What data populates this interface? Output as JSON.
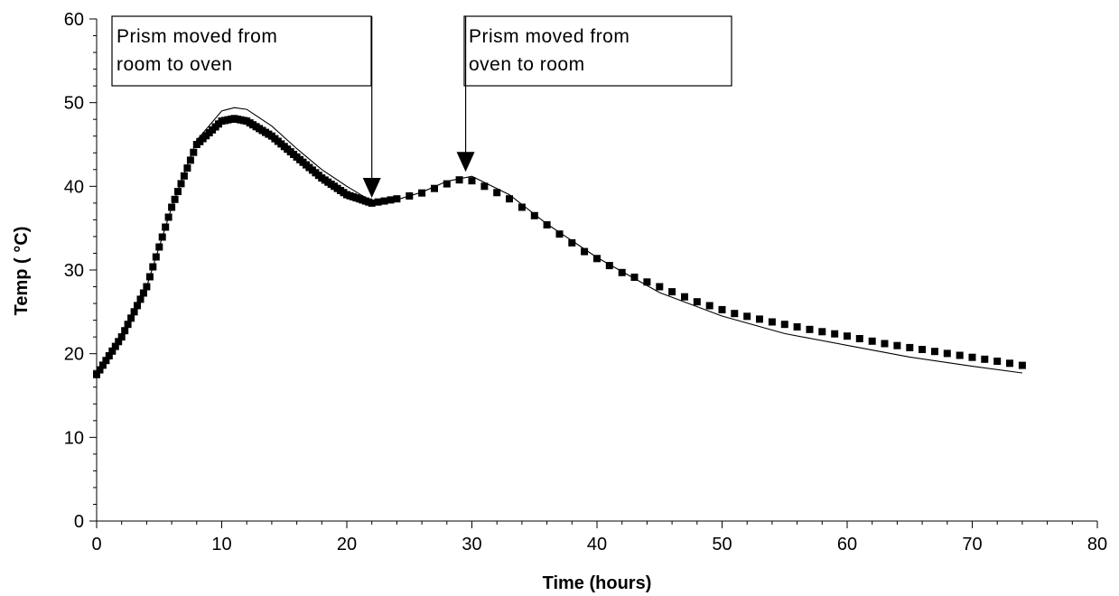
{
  "chart_data": {
    "type": "scatter",
    "title": "",
    "xlabel": "Time (hours)",
    "ylabel": "Temp ( °C)",
    "xlim": [
      0,
      80
    ],
    "ylim": [
      0,
      60
    ],
    "x_ticks": [
      0,
      10,
      20,
      30,
      40,
      50,
      60,
      70,
      80
    ],
    "y_ticks": [
      0,
      10,
      20,
      30,
      40,
      50,
      60
    ],
    "x_tick_labels": [
      "0",
      "10",
      "20",
      "30",
      "40",
      "50",
      "60",
      "70",
      "80"
    ],
    "y_tick_labels": [
      "0",
      "10",
      "20",
      "30",
      "40",
      "50",
      "60"
    ],
    "grid": false,
    "legend": "none",
    "series": [
      {
        "style": "square-markers",
        "color": "#000000",
        "x": [
          0,
          2,
          4,
          6,
          8,
          10,
          11,
          12,
          14,
          16,
          18,
          20,
          22,
          24,
          26,
          28,
          29.5,
          31,
          33,
          35,
          37,
          39,
          42,
          45,
          48,
          51,
          54,
          57,
          60,
          63,
          66,
          69,
          72,
          74
        ],
        "y": [
          17.5,
          22,
          28,
          37.5,
          45,
          47.8,
          48.1,
          47.8,
          46,
          43.5,
          41,
          39,
          38,
          38.5,
          39.2,
          40.3,
          41,
          40,
          38.5,
          36.5,
          34.3,
          32.2,
          29.7,
          28,
          26.2,
          24.8,
          23.8,
          22.9,
          22.1,
          21.2,
          20.5,
          19.8,
          19.1,
          18.6
        ]
      },
      {
        "style": "thin-line",
        "color": "#000000",
        "x": [
          0,
          2,
          4,
          6,
          8,
          10,
          11,
          12,
          14,
          16,
          18,
          20,
          22,
          24,
          26,
          28,
          30,
          33,
          36,
          40,
          45,
          50,
          55,
          60,
          65,
          70,
          74
        ],
        "y": [
          17.5,
          22,
          28,
          37.5,
          45.5,
          49,
          49.4,
          49.2,
          47.2,
          44.5,
          42,
          40,
          38.2,
          38.4,
          39.3,
          40.6,
          41.2,
          39,
          35.5,
          31.5,
          27.3,
          24.5,
          22.4,
          21,
          19.6,
          18.5,
          17.7
        ]
      }
    ],
    "annotations": [
      {
        "text_lines": [
          "Prism moved from",
          "room to oven"
        ],
        "arrow_to": [
          22,
          38.2
        ]
      },
      {
        "text_lines": [
          "Prism moved from",
          "oven to room"
        ],
        "arrow_to": [
          29.5,
          41.3
        ]
      }
    ]
  }
}
